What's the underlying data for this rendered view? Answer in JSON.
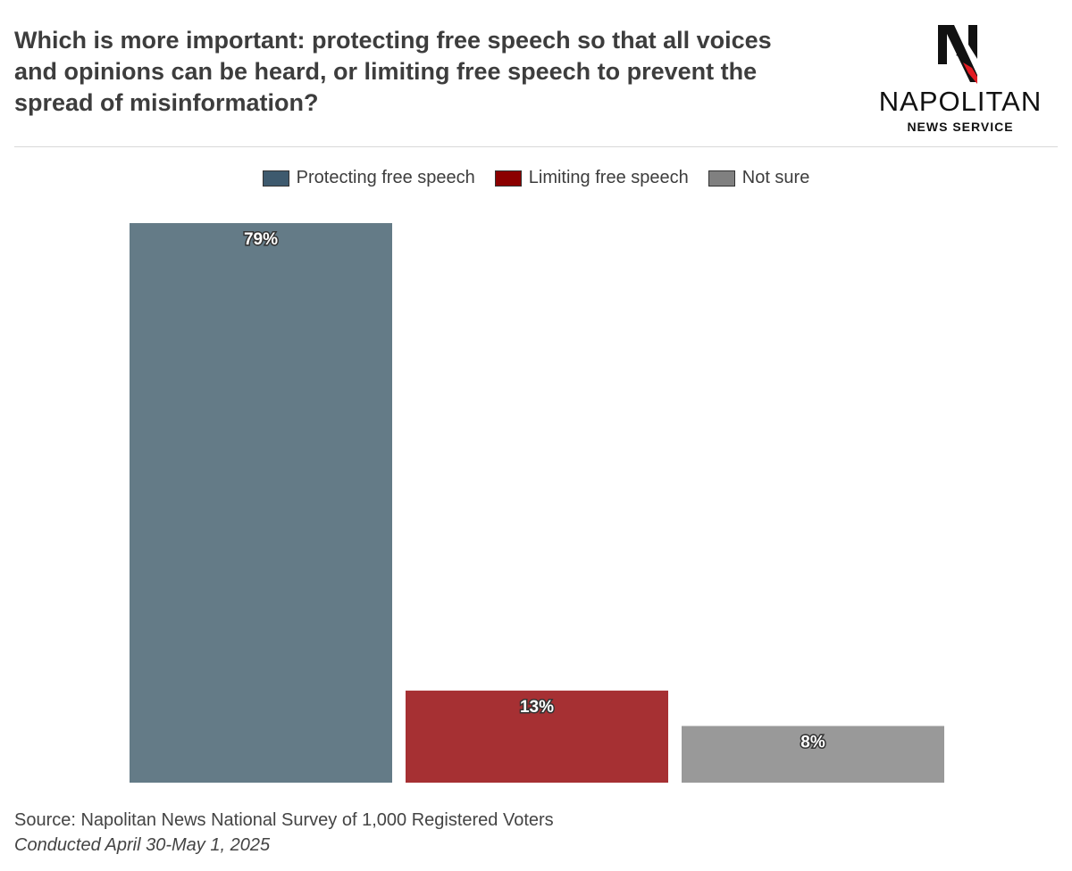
{
  "header": {
    "title": "Which is more important: protecting free speech so that all voices and opinions can be heard, or limiting free speech to prevent the spread of misinformation?"
  },
  "logo": {
    "name": "NAPOLITAN",
    "subtitle": "NEWS SERVICE",
    "icon": "napolitan-n-eagle-icon"
  },
  "footer": {
    "source": "Source: Napolitan News National Survey of 1,000 Registered Voters",
    "conducted": "Conducted April 30-May 1, 2025"
  },
  "chart_data": {
    "type": "bar",
    "title": "",
    "xlabel": "",
    "ylabel": "",
    "ylim": [
      0,
      79
    ],
    "grid": false,
    "legend_position": "top-center",
    "categories": [
      "Protecting free speech",
      "Limiting free speech",
      "Not sure"
    ],
    "values": [
      79,
      13,
      8
    ],
    "data_labels": [
      "79%",
      "13%",
      "8%"
    ],
    "legend_colors": [
      "#3e5a6e",
      "#8b0000",
      "#808080"
    ],
    "bar_colors": [
      "#647b87",
      "#a63033",
      "#999999"
    ]
  }
}
